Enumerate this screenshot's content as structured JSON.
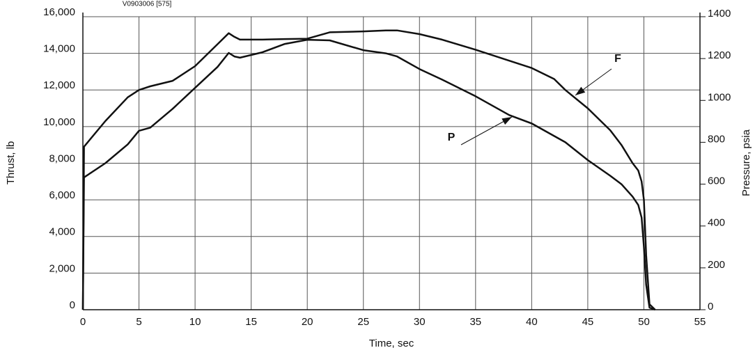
{
  "chart_data": {
    "type": "line",
    "subtitle": "V0903006 [575]",
    "x_label": "Time, sec",
    "y_label": "Thrust, lb",
    "y2_label": "Pressure, psia",
    "x": [
      0,
      0.1,
      2,
      4,
      5,
      6,
      8,
      10,
      12,
      13,
      13.5,
      14,
      16,
      18,
      20,
      22,
      25,
      27,
      28,
      30,
      32,
      35,
      38,
      40,
      42,
      43,
      45,
      47,
      48,
      49,
      49.5,
      49.8,
      50,
      50.2,
      50.5,
      51
    ],
    "series": [
      {
        "name": "F",
        "color": "#111111",
        "values": [
          0,
          8900,
          10300,
          11600,
          12000,
          12200,
          12500,
          13300,
          14500,
          15100,
          14900,
          14750,
          14750,
          14780,
          14800,
          15150,
          15200,
          15250,
          15250,
          15050,
          14750,
          14200,
          13600,
          13200,
          12600,
          12000,
          11000,
          9800,
          9000,
          8000,
          7600,
          7000,
          6000,
          3000,
          300,
          0
        ]
      },
      {
        "name": "P",
        "color": "#111111",
        "axis": "y2",
        "values": [
          0,
          632,
          700,
          790,
          855,
          870,
          960,
          1060,
          1160,
          1227,
          1210,
          1204,
          1230,
          1270,
          1290,
          1287,
          1240,
          1225,
          1210,
          1150,
          1100,
          1020,
          930,
          890,
          830,
          800,
          715,
          640,
          600,
          540,
          500,
          440,
          300,
          120,
          10,
          0
        ]
      }
    ],
    "xlim": [
      0,
      55
    ],
    "xticks": [
      0,
      5,
      10,
      15,
      20,
      25,
      30,
      35,
      40,
      45,
      50,
      55
    ],
    "ylim": [
      0,
      16000
    ],
    "yticks": [
      0,
      {
        "value": 2000,
        "label": "2,000"
      },
      {
        "value": 4000,
        "label": "4,000"
      },
      {
        "value": 6000,
        "label": "6,000"
      },
      {
        "value": 8000,
        "label": "8,000"
      },
      {
        "value": 10000,
        "label": "10,000"
      },
      {
        "value": 12000,
        "label": "12,000"
      },
      {
        "value": 14000,
        "label": "14,000"
      },
      {
        "value": 16000,
        "label": "16,000"
      }
    ],
    "y2lim": [
      0,
      1400
    ],
    "y2ticks": [
      0,
      200,
      400,
      600,
      800,
      1000,
      1200,
      1400
    ],
    "grid": true,
    "annotations": [
      {
        "text": "F"
      },
      {
        "text": "P"
      }
    ]
  }
}
